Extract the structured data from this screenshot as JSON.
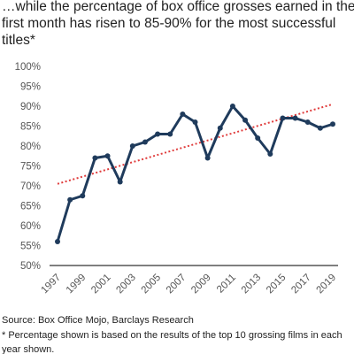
{
  "chart_data": {
    "type": "line",
    "title_lines": [
      "…while the percentage of box office grosses earned in the",
      "first month has risen to 85-90% for the most successful",
      "titles*"
    ],
    "categories": [
      "1997",
      null,
      "1999",
      null,
      "2001",
      null,
      "2003",
      null,
      "2005",
      null,
      "2007",
      null,
      "2009",
      null,
      "2011",
      null,
      "2013",
      null,
      "2015",
      null,
      "2017",
      null,
      "2019"
    ],
    "series": [
      {
        "name": "Share of box office grosses earned in first month",
        "color": "#1f3b5c",
        "values": [
          56,
          66.5,
          67.5,
          77,
          77.5,
          71,
          80,
          81,
          83,
          83,
          88,
          86,
          77,
          84.5,
          90,
          86.5,
          82,
          78,
          87,
          87,
          86,
          84.5,
          85.5
        ]
      }
    ],
    "trendline": {
      "start": 70.5,
      "end": 90.5,
      "color": "#e03c3c"
    },
    "ylim": [
      50,
      100
    ],
    "yticks": [
      {
        "value": 50,
        "label": "50%"
      },
      {
        "value": 55,
        "label": "55%"
      },
      {
        "value": 60,
        "label": "60%"
      },
      {
        "value": 65,
        "label": "65%"
      },
      {
        "value": 70,
        "label": "70%"
      },
      {
        "value": 75,
        "label": "75%"
      },
      {
        "value": 80,
        "label": "80%"
      },
      {
        "value": 85,
        "label": "85%"
      },
      {
        "value": 90,
        "label": "90%"
      },
      {
        "value": 95,
        "label": "95%"
      },
      {
        "value": 100,
        "label": "100%"
      }
    ],
    "grid": false,
    "notes": [
      "Source: Box Office Mojo, Barclays Research",
      "* Percentage shown is based on the results of the top 10 grossing films in each",
      "year shown."
    ]
  }
}
